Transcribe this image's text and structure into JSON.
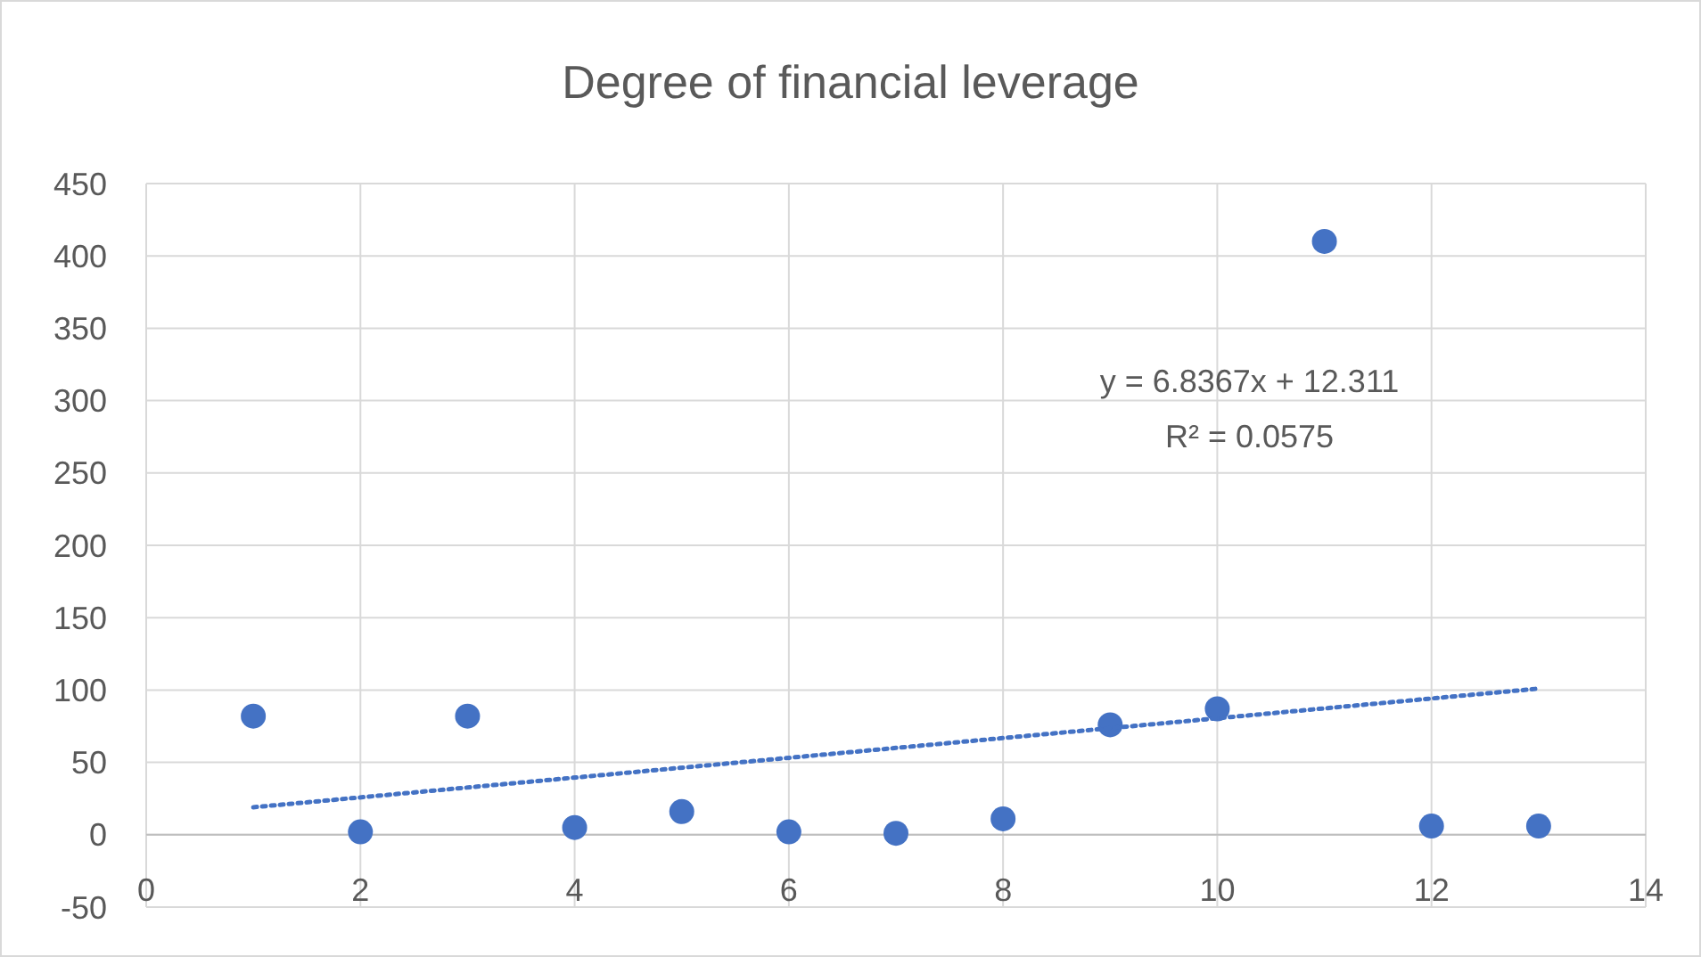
{
  "chart_data": {
    "type": "scatter",
    "title": "Degree of financial leverage",
    "x": [
      1,
      2,
      3,
      4,
      5,
      6,
      7,
      8,
      9,
      10,
      11,
      12,
      13
    ],
    "series": [
      {
        "color": "#4472c4",
        "marker": "circle",
        "values": [
          82,
          2,
          82,
          5,
          16,
          2,
          1,
          11,
          76,
          87,
          410,
          6,
          6
        ]
      },
      {
        "type": "line",
        "color": "#4472c4",
        "line_style": "dotted",
        "marker": "none",
        "x": [
          1,
          13
        ],
        "values": [
          19,
          101
        ]
      }
    ],
    "annotations": [
      "y = 6.8367x + 12.311",
      "R² = 0.0575"
    ],
    "xlim": [
      0,
      14
    ],
    "xticks": [
      0,
      2,
      4,
      6,
      8,
      10,
      12,
      14
    ],
    "ylim": [
      -50,
      450
    ],
    "yticks": [
      -50,
      0,
      50,
      100,
      150,
      200,
      250,
      300,
      350,
      400,
      450
    ],
    "grid": true
  }
}
